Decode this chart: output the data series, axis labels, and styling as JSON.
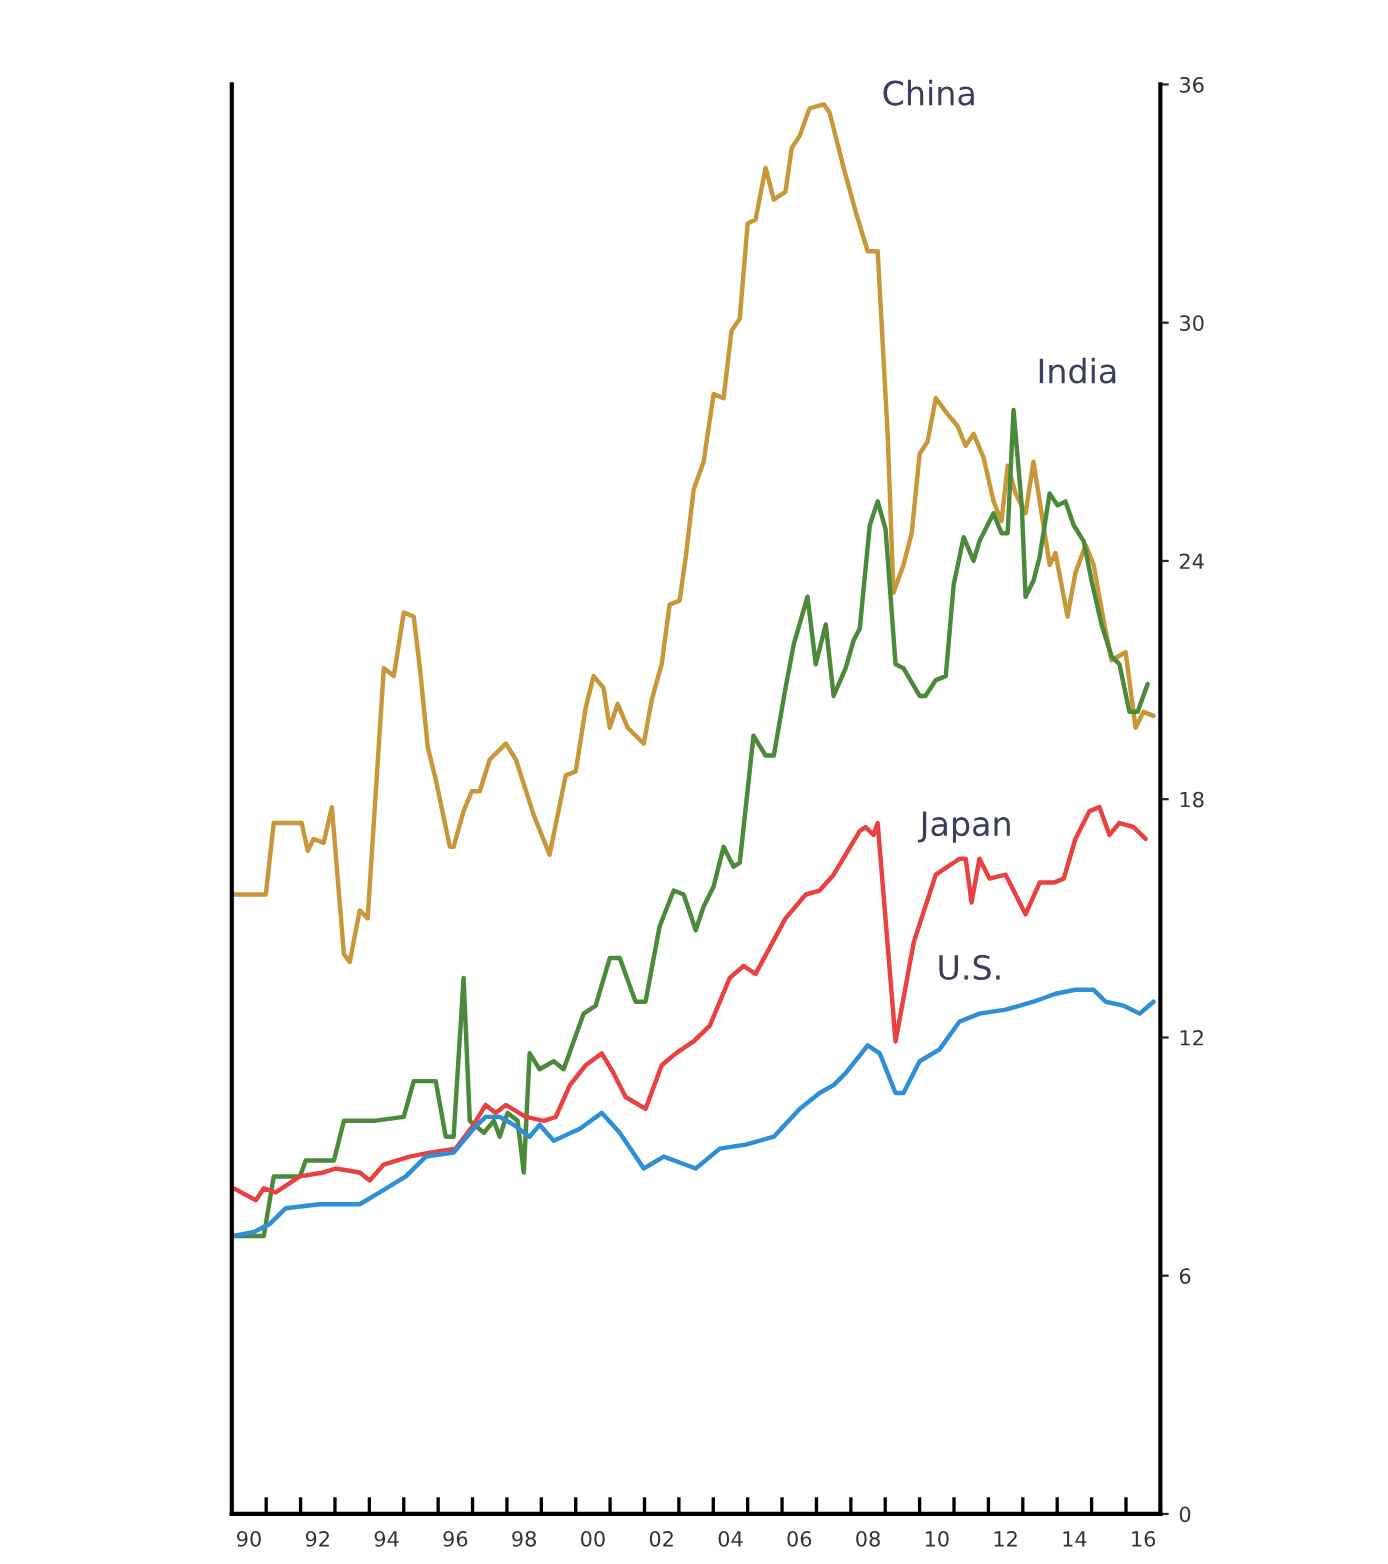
{
  "chart_data": {
    "type": "line",
    "xlim": [
      1989.5,
      2016.5
    ],
    "ylim": [
      0,
      36
    ],
    "xticks": [
      {
        "value": 1990,
        "label": "90"
      },
      {
        "value": 1992,
        "label": "92"
      },
      {
        "value": 1994,
        "label": "94"
      },
      {
        "value": 1996,
        "label": "96"
      },
      {
        "value": 1998,
        "label": "98"
      },
      {
        "value": 2000,
        "label": "00"
      },
      {
        "value": 2002,
        "label": "02"
      },
      {
        "value": 2004,
        "label": "04"
      },
      {
        "value": 2006,
        "label": "06"
      },
      {
        "value": 2008,
        "label": "08"
      },
      {
        "value": 2010,
        "label": "10"
      },
      {
        "value": 2012,
        "label": "12"
      },
      {
        "value": 2014,
        "label": "14"
      },
      {
        "value": 2016,
        "label": "16"
      },
      {
        "value": 1990.5,
        "label": null
      },
      {
        "value": 1991.5,
        "label": null
      },
      {
        "value": 1992.5,
        "label": null
      },
      {
        "value": 1993.5,
        "label": null
      },
      {
        "value": 1994.5,
        "label": null
      },
      {
        "value": 1995.5,
        "label": null
      },
      {
        "value": 1996.5,
        "label": null
      },
      {
        "value": 1997.5,
        "label": null
      },
      {
        "value": 1998.5,
        "label": null
      },
      {
        "value": 1999.5,
        "label": null
      },
      {
        "value": 2000.5,
        "label": null
      },
      {
        "value": 2001.5,
        "label": null
      },
      {
        "value": 2002.5,
        "label": null
      },
      {
        "value": 2003.5,
        "label": null
      },
      {
        "value": 2004.5,
        "label": null
      },
      {
        "value": 2005.5,
        "label": null
      },
      {
        "value": 2006.5,
        "label": null
      },
      {
        "value": 2007.5,
        "label": null
      },
      {
        "value": 2008.5,
        "label": null
      },
      {
        "value": 2009.5,
        "label": null
      },
      {
        "value": 2010.5,
        "label": null
      },
      {
        "value": 2011.5,
        "label": null
      },
      {
        "value": 2012.5,
        "label": null
      },
      {
        "value": 2013.5,
        "label": null
      },
      {
        "value": 2014.5,
        "label": null
      },
      {
        "value": 2015.5,
        "label": null
      }
    ],
    "yticks": [
      0,
      6,
      12,
      18,
      24,
      30,
      36
    ],
    "grid": false,
    "legend": false,
    "marker": "none",
    "line_style": "solid",
    "series": [
      {
        "name": "China",
        "color": "#c8973a",
        "x": [
          1989.56,
          1990.49,
          1990.72,
          1991.53,
          1991.71,
          1991.88,
          1992.17,
          1992.41,
          1992.76,
          1992.93,
          1993.22,
          1993.45,
          1993.92,
          1994.21,
          1994.5,
          1994.79,
          1994.97,
          1995.2,
          1995.43,
          1995.84,
          1995.95,
          1996.24,
          1996.48,
          1996.71,
          1997.0,
          1997.47,
          1997.76,
          1998.28,
          1998.74,
          1999.21,
          1999.5,
          1999.79,
          2000.02,
          2000.31,
          2000.49,
          2000.72,
          2001.01,
          2001.48,
          2001.71,
          2002.0,
          2002.23,
          2002.52,
          2002.7,
          2002.93,
          2003.22,
          2003.51,
          2003.8,
          2004.03,
          2004.27,
          2004.5,
          2004.73,
          2005.02,
          2005.26,
          2005.6,
          2005.78,
          2006.01,
          2006.3,
          2006.71,
          2006.88,
          2007.29,
          2007.64,
          2007.99,
          2008.28,
          2008.57,
          2008.74,
          2009.03,
          2009.27,
          2009.5,
          2009.73,
          2009.97,
          2010.31,
          2010.6,
          2010.84,
          2011.07,
          2011.36,
          2011.65,
          2011.88,
          2012.06,
          2012.29,
          2012.58,
          2012.81,
          2013.1,
          2013.28,
          2013.45,
          2013.8,
          2014.03,
          2014.33,
          2014.56,
          2014.85,
          2015.08,
          2015.49,
          2015.78,
          2016.01,
          2016.3
        ],
        "values": [
          15.6,
          15.6,
          17.4,
          17.4,
          16.7,
          17.0,
          16.9,
          17.8,
          14.1,
          13.9,
          15.2,
          15.0,
          21.3,
          21.1,
          22.7,
          22.6,
          21.3,
          19.3,
          18.5,
          16.8,
          16.8,
          17.7,
          18.2,
          18.2,
          19.0,
          19.4,
          19.0,
          17.6,
          16.6,
          18.6,
          18.7,
          20.3,
          21.1,
          20.8,
          19.8,
          20.4,
          19.8,
          19.4,
          20.5,
          21.4,
          22.9,
          23.0,
          24.1,
          25.8,
          26.5,
          28.2,
          28.1,
          29.8,
          30.1,
          32.5,
          32.6,
          33.9,
          33.1,
          33.3,
          34.4,
          34.7,
          35.4,
          35.5,
          35.3,
          33.9,
          32.8,
          31.8,
          31.8,
          27.2,
          23.2,
          23.9,
          24.7,
          26.7,
          27.0,
          28.1,
          27.7,
          27.4,
          26.9,
          27.2,
          26.6,
          25.5,
          25.0,
          26.4,
          25.7,
          25.2,
          26.5,
          24.9,
          23.9,
          24.2,
          22.6,
          23.7,
          24.4,
          23.9,
          22.5,
          21.5,
          21.7,
          19.8,
          20.2,
          20.1
        ]
      },
      {
        "name": "India",
        "color": "#4a8a3a",
        "x": [
          1989.56,
          1990.43,
          1990.72,
          1991.48,
          1991.65,
          1992.47,
          1992.76,
          1993.63,
          1994.5,
          1994.79,
          1995.43,
          1995.72,
          1995.95,
          1996.24,
          1996.42,
          1996.83,
          1997.12,
          1997.29,
          1997.52,
          1997.81,
          1997.99,
          1998.16,
          1998.45,
          1998.86,
          1999.15,
          1999.73,
          2000.08,
          2000.49,
          2000.78,
          2001.24,
          2001.53,
          2001.94,
          2002.35,
          2002.64,
          2002.99,
          2003.22,
          2003.51,
          2003.8,
          2004.09,
          2004.27,
          2004.67,
          2005.02,
          2005.26,
          2005.6,
          2005.84,
          2006.24,
          2006.48,
          2006.77,
          2007.0,
          2007.35,
          2007.58,
          2007.76,
          2008.05,
          2008.28,
          2008.51,
          2008.8,
          2009.03,
          2009.5,
          2009.67,
          2009.97,
          2010.26,
          2010.49,
          2010.78,
          2011.07,
          2011.24,
          2011.65,
          2011.88,
          2012.06,
          2012.23,
          2012.47,
          2012.58,
          2012.81,
          2012.99,
          2013.28,
          2013.51,
          2013.74,
          2013.98,
          2014.27,
          2014.5,
          2014.79,
          2015.08,
          2015.31,
          2015.6,
          2015.84,
          2016.13
        ],
        "values": [
          7.0,
          7.0,
          8.5,
          8.5,
          8.9,
          8.9,
          9.9,
          9.9,
          10.0,
          10.9,
          10.9,
          9.5,
          9.5,
          13.5,
          9.9,
          9.6,
          9.9,
          9.5,
          10.1,
          9.9,
          8.6,
          11.6,
          11.2,
          11.4,
          11.2,
          12.6,
          12.8,
          14.0,
          14.0,
          12.9,
          12.9,
          14.8,
          15.7,
          15.6,
          14.7,
          15.3,
          15.8,
          16.8,
          16.3,
          16.4,
          19.6,
          19.1,
          19.1,
          20.8,
          21.9,
          23.1,
          21.4,
          22.4,
          20.6,
          21.3,
          22.0,
          22.3,
          24.9,
          25.5,
          24.8,
          21.4,
          21.3,
          20.6,
          20.6,
          21.0,
          21.1,
          23.4,
          24.6,
          24.0,
          24.5,
          25.2,
          24.7,
          24.7,
          27.8,
          25.4,
          23.1,
          23.5,
          24.1,
          25.7,
          25.4,
          25.5,
          24.9,
          24.5,
          23.5,
          22.4,
          21.6,
          21.4,
          20.2,
          20.2,
          20.9
        ]
      },
      {
        "name": "Japan",
        "color": "#e8413f",
        "x": [
          1989.56,
          1990.2,
          1990.43,
          1990.78,
          1991.48,
          1992.17,
          1992.52,
          1993.22,
          1993.51,
          1993.92,
          1994.67,
          1995.26,
          1996.01,
          1996.53,
          1996.88,
          1997.17,
          1997.47,
          1998.05,
          1998.57,
          1998.92,
          1999.33,
          1999.79,
          2000.26,
          2000.6,
          2000.95,
          2001.53,
          2002.0,
          2002.41,
          2002.93,
          2003.4,
          2003.98,
          2004.38,
          2004.73,
          2005.6,
          2006.19,
          2006.59,
          2007.0,
          2007.76,
          2007.93,
          2008.16,
          2008.28,
          2008.8,
          2009.33,
          2009.97,
          2010.66,
          2010.84,
          2011.01,
          2011.24,
          2011.53,
          2012.0,
          2012.58,
          2012.99,
          2013.4,
          2013.69,
          2014.03,
          2014.44,
          2014.73,
          2015.02,
          2015.31,
          2015.72,
          2016.07
        ],
        "values": [
          8.2,
          7.9,
          8.2,
          8.1,
          8.5,
          8.6,
          8.7,
          8.6,
          8.4,
          8.8,
          9.0,
          9.1,
          9.2,
          9.8,
          10.3,
          10.1,
          10.3,
          10.0,
          9.9,
          10.0,
          10.8,
          11.3,
          11.6,
          11.1,
          10.5,
          10.2,
          11.3,
          11.6,
          11.9,
          12.3,
          13.5,
          13.8,
          13.6,
          15.0,
          15.6,
          15.7,
          16.1,
          17.2,
          17.3,
          17.1,
          17.4,
          11.9,
          14.4,
          16.1,
          16.5,
          16.5,
          15.4,
          16.5,
          16.0,
          16.1,
          15.1,
          15.9,
          15.9,
          16.0,
          17.0,
          17.7,
          17.8,
          17.1,
          17.4,
          17.3,
          17.0
        ]
      },
      {
        "name": "U.S.",
        "color": "#2f8fd6",
        "x": [
          1989.56,
          1990.14,
          1990.6,
          1991.07,
          1992.06,
          1993.22,
          1993.8,
          1994.56,
          1995.14,
          1995.95,
          1996.53,
          1996.88,
          1997.29,
          1997.7,
          1998.16,
          1998.45,
          1998.86,
          1999.62,
          2000.26,
          2000.78,
          2001.48,
          2002.06,
          2002.99,
          2003.69,
          2004.44,
          2005.26,
          2006.01,
          2006.59,
          2007.0,
          2007.35,
          2007.99,
          2008.34,
          2008.8,
          2009.03,
          2009.5,
          2010.08,
          2010.66,
          2011.24,
          2012.0,
          2012.81,
          2013.45,
          2014.03,
          2014.56,
          2014.91,
          2015.43,
          2015.9,
          2016.3
        ],
        "values": [
          7.0,
          7.1,
          7.3,
          7.7,
          7.8,
          7.8,
          8.1,
          8.5,
          9.0,
          9.1,
          9.7,
          10.0,
          10.0,
          9.8,
          9.5,
          9.8,
          9.4,
          9.7,
          10.1,
          9.6,
          8.7,
          9.0,
          8.7,
          9.2,
          9.3,
          9.5,
          10.2,
          10.6,
          10.8,
          11.1,
          11.8,
          11.6,
          10.6,
          10.6,
          11.4,
          11.7,
          12.4,
          12.6,
          12.7,
          12.9,
          13.1,
          13.2,
          13.2,
          12.9,
          12.8,
          12.6,
          12.9
        ]
      }
    ]
  }
}
